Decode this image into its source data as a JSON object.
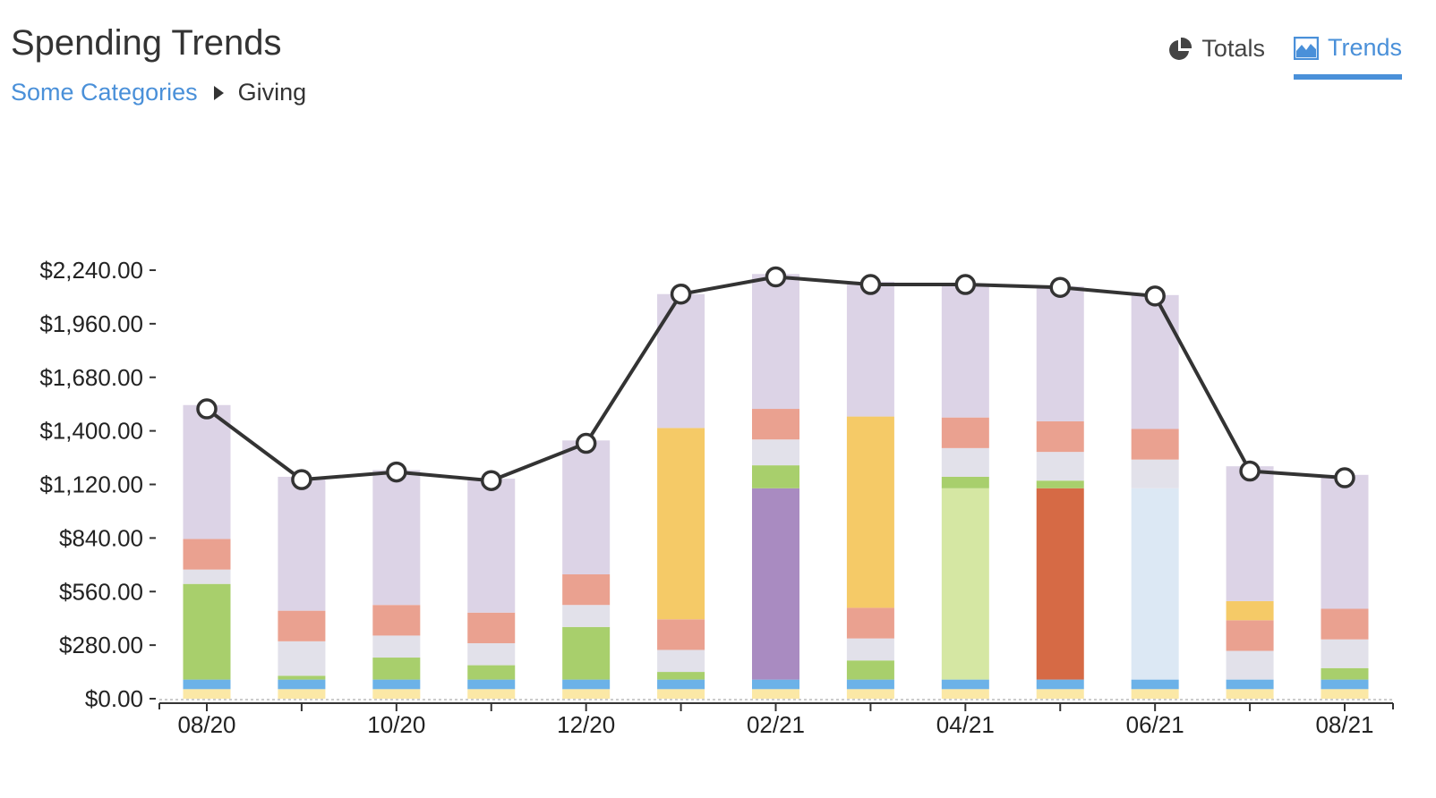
{
  "header": {
    "title": "Spending Trends",
    "breadcrumb": {
      "parent": "Some Categories",
      "current": "Giving"
    }
  },
  "tabs": [
    {
      "label": "Totals",
      "icon": "pie-chart-icon",
      "active": false
    },
    {
      "label": "Trends",
      "icon": "area-chart-icon",
      "active": true
    }
  ],
  "colors": {
    "accent": "#4a90d9",
    "line": "#333333",
    "categories": [
      "#fbe8a6",
      "#6cb2e8",
      "#e2e1ea",
      "#eaa190",
      "#dcd3e6"
    ]
  },
  "chart_data": {
    "type": "bar",
    "stacked": true,
    "y_tick_labels": [
      "$0.00",
      "$280.00",
      "$560.00",
      "$840.00",
      "$1,120.00",
      "$1,400.00",
      "$1,680.00",
      "$1,960.00",
      "$2,240.00"
    ],
    "ylim": [
      0,
      2240
    ],
    "x_tick_labels": [
      "08/20",
      "",
      "10/20",
      "",
      "12/20",
      "",
      "02/21",
      "",
      "04/21",
      "",
      "06/21",
      "",
      "08/21"
    ],
    "categories": [
      "2020-08",
      "2020-09",
      "2020-10",
      "2020-11",
      "2020-12",
      "2021-01",
      "2021-02",
      "2021-03",
      "2021-04",
      "2021-05",
      "2021-06",
      "2021-07",
      "2021-08"
    ],
    "bars": [
      [
        {
          "v": 50,
          "c": "#fbe8a6"
        },
        {
          "v": 50,
          "c": "#6cb2e8"
        },
        {
          "v": 500,
          "c": "#a8cf6c"
        },
        {
          "v": 75,
          "c": "#e2e1ea"
        },
        {
          "v": 160,
          "c": "#eaa190"
        },
        {
          "v": 700,
          "c": "#dcd3e6"
        }
      ],
      [
        {
          "v": 50,
          "c": "#fbe8a6"
        },
        {
          "v": 50,
          "c": "#6cb2e8"
        },
        {
          "v": 20,
          "c": "#a8cf6c"
        },
        {
          "v": 180,
          "c": "#e2e1ea"
        },
        {
          "v": 160,
          "c": "#eaa190"
        },
        {
          "v": 700,
          "c": "#dcd3e6"
        }
      ],
      [
        {
          "v": 50,
          "c": "#fbe8a6"
        },
        {
          "v": 50,
          "c": "#6cb2e8"
        },
        {
          "v": 115,
          "c": "#a8cf6c"
        },
        {
          "v": 115,
          "c": "#e2e1ea"
        },
        {
          "v": 160,
          "c": "#eaa190"
        },
        {
          "v": 705,
          "c": "#dcd3e6"
        }
      ],
      [
        {
          "v": 50,
          "c": "#fbe8a6"
        },
        {
          "v": 50,
          "c": "#6cb2e8"
        },
        {
          "v": 75,
          "c": "#a8cf6c"
        },
        {
          "v": 115,
          "c": "#e2e1ea"
        },
        {
          "v": 160,
          "c": "#eaa190"
        },
        {
          "v": 700,
          "c": "#dcd3e6"
        }
      ],
      [
        {
          "v": 50,
          "c": "#fbe8a6"
        },
        {
          "v": 50,
          "c": "#6cb2e8"
        },
        {
          "v": 275,
          "c": "#a8cf6c"
        },
        {
          "v": 115,
          "c": "#e2e1ea"
        },
        {
          "v": 160,
          "c": "#eaa190"
        },
        {
          "v": 700,
          "c": "#dcd3e6"
        }
      ],
      [
        {
          "v": 50,
          "c": "#fbe8a6"
        },
        {
          "v": 50,
          "c": "#6cb2e8"
        },
        {
          "v": 40,
          "c": "#a8cf6c"
        },
        {
          "v": 115,
          "c": "#e2e1ea"
        },
        {
          "v": 160,
          "c": "#eaa190"
        },
        {
          "v": 1000,
          "c": "#f5ca67"
        },
        {
          "v": 700,
          "c": "#dcd3e6"
        }
      ],
      [
        {
          "v": 50,
          "c": "#fbe8a6"
        },
        {
          "v": 50,
          "c": "#6cb2e8"
        },
        {
          "v": 1000,
          "c": "#a98bc1"
        },
        {
          "v": 120,
          "c": "#a8cf6c"
        },
        {
          "v": 135,
          "c": "#e2e1ea"
        },
        {
          "v": 160,
          "c": "#eaa190"
        },
        {
          "v": 705,
          "c": "#dcd3e6"
        }
      ],
      [
        {
          "v": 50,
          "c": "#fbe8a6"
        },
        {
          "v": 50,
          "c": "#6cb2e8"
        },
        {
          "v": 100,
          "c": "#a8cf6c"
        },
        {
          "v": 115,
          "c": "#e2e1ea"
        },
        {
          "v": 160,
          "c": "#eaa190"
        },
        {
          "v": 1000,
          "c": "#f5ca67"
        },
        {
          "v": 705,
          "c": "#dcd3e6"
        }
      ],
      [
        {
          "v": 50,
          "c": "#fbe8a6"
        },
        {
          "v": 50,
          "c": "#6cb2e8"
        },
        {
          "v": 1000,
          "c": "#d5e7a3"
        },
        {
          "v": 60,
          "c": "#a8cf6c"
        },
        {
          "v": 150,
          "c": "#e2e1ea"
        },
        {
          "v": 160,
          "c": "#eaa190"
        },
        {
          "v": 700,
          "c": "#dcd3e6"
        }
      ],
      [
        {
          "v": 50,
          "c": "#fbe8a6"
        },
        {
          "v": 50,
          "c": "#6cb2e8"
        },
        {
          "v": 1000,
          "c": "#d66a45"
        },
        {
          "v": 40,
          "c": "#a8cf6c"
        },
        {
          "v": 150,
          "c": "#e2e1ea"
        },
        {
          "v": 160,
          "c": "#eaa190"
        },
        {
          "v": 705,
          "c": "#dcd3e6"
        }
      ],
      [
        {
          "v": 50,
          "c": "#fbe8a6"
        },
        {
          "v": 50,
          "c": "#6cb2e8"
        },
        {
          "v": 1000,
          "c": "#dce8f4"
        },
        {
          "v": 150,
          "c": "#e2e1ea"
        },
        {
          "v": 160,
          "c": "#eaa190"
        },
        {
          "v": 700,
          "c": "#dcd3e6"
        }
      ],
      [
        {
          "v": 50,
          "c": "#fbe8a6"
        },
        {
          "v": 50,
          "c": "#6cb2e8"
        },
        {
          "v": 150,
          "c": "#e2e1ea"
        },
        {
          "v": 160,
          "c": "#eaa190"
        },
        {
          "v": 100,
          "c": "#f5ca67"
        },
        {
          "v": 705,
          "c": "#dcd3e6"
        }
      ],
      [
        {
          "v": 50,
          "c": "#fbe8a6"
        },
        {
          "v": 50,
          "c": "#6cb2e8"
        },
        {
          "v": 60,
          "c": "#a8cf6c"
        },
        {
          "v": 150,
          "c": "#e2e1ea"
        },
        {
          "v": 160,
          "c": "#eaa190"
        },
        {
          "v": 700,
          "c": "#dcd3e6"
        }
      ]
    ],
    "line_values": [
      1515,
      1145,
      1185,
      1140,
      1335,
      2115,
      2205,
      2165,
      2165,
      2150,
      2105,
      1190,
      1155
    ],
    "grid": false,
    "legend": "none"
  }
}
